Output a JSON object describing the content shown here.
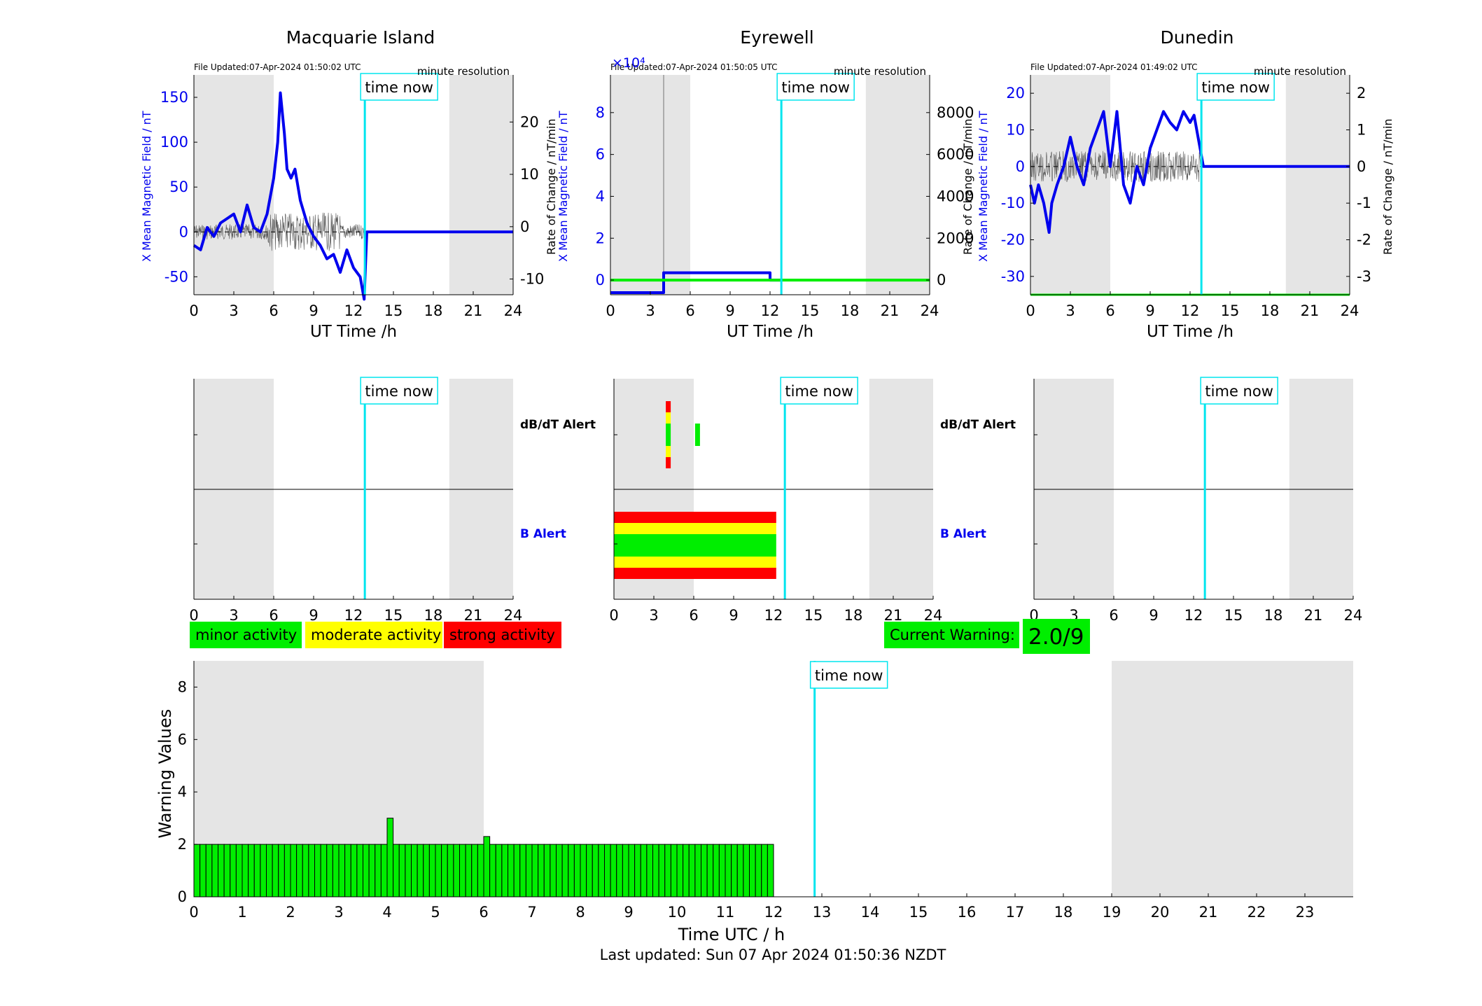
{
  "colors": {
    "night": "#e5e5e5",
    "now_line": "#00e5ee",
    "field": "#0000ee",
    "roc": "#555555",
    "minor": "#00ee00",
    "moderate": "#ffff00",
    "strong": "#ff0000"
  },
  "time_now_label": "time now",
  "xlabel_top": "UT Time /h",
  "now_hour": 12.85,
  "night_bands": [
    [
      0,
      6
    ],
    [
      19.2,
      24
    ]
  ],
  "stations": [
    {
      "title": "Macquarie Island",
      "file_updated": "File Updated:07-Apr-2024 01:50:02 UTC",
      "resolution": "minute resolution",
      "ylabel_left": "X Mean Magnetic Field / nT",
      "ylabel_right": "Rate of Change / nT/min",
      "exponent": "",
      "yticks_left": [
        "-50",
        "0",
        "50",
        "100",
        "150"
      ],
      "yticks_right": [
        "-10",
        "0",
        "10",
        "20"
      ]
    },
    {
      "title": "Eyrewell",
      "file_updated": "File Updated:07-Apr-2024 01:50:05 UTC",
      "resolution": "minute resolution",
      "ylabel_left": "X Mean Magnetic Field / nT",
      "ylabel_right": "Rate of Change / nT/min",
      "exponent": "×10⁴",
      "yticks_left": [
        "0",
        "2",
        "4",
        "6",
        "8"
      ],
      "yticks_right": [
        "0",
        "2000",
        "4000",
        "6000",
        "8000"
      ]
    },
    {
      "title": "Dunedin",
      "file_updated": "File Updated:07-Apr-2024 01:49:02 UTC",
      "resolution": "minute resolution",
      "ylabel_left": "X Mean Magnetic Field / nT",
      "ylabel_right": "Rate of Change / nT/min",
      "exponent": "",
      "yticks_left": [
        "-30",
        "-20",
        "-10",
        "0",
        "10",
        "20"
      ],
      "yticks_right": [
        "-3",
        "-2",
        "-1",
        "0",
        "1",
        "2"
      ]
    }
  ],
  "alerts": {
    "dbdt_label": "dB/dT Alert",
    "b_label": "B Alert",
    "xticks": [
      "0",
      "3",
      "6",
      "9",
      "12",
      "15",
      "18",
      "21",
      "24"
    ]
  },
  "legend": {
    "minor": "minor activity",
    "moderate": "moderate activity",
    "strong": "strong activity"
  },
  "current_warning": {
    "label": "Current Warning:",
    "value": "2.0/9"
  },
  "chart_data": [
    {
      "type": "line",
      "title": "Macquarie Island",
      "xlabel": "UT Time /h",
      "ylabel": "X Mean Magnetic Field / nT",
      "y2label": "Rate of Change / nT/min",
      "xlim": [
        0,
        24
      ],
      "ylim": [
        -70,
        175
      ],
      "y2lim": [
        -13,
        29
      ],
      "series": [
        {
          "x": [
            0,
            0.5,
            1,
            1.5,
            2,
            2.5,
            3,
            3.5,
            4,
            4.5,
            5,
            5.5,
            6,
            6.3,
            6.5,
            6.8,
            7,
            7.3,
            7.6,
            8,
            8.5,
            9,
            9.5,
            10,
            10.5,
            11,
            11.5,
            12,
            12.5,
            12.8,
            13,
            24
          ],
          "y": [
            -15,
            -20,
            5,
            -5,
            10,
            15,
            20,
            0,
            30,
            5,
            0,
            20,
            60,
            100,
            155,
            110,
            70,
            60,
            70,
            35,
            10,
            -5,
            -15,
            -30,
            -25,
            -45,
            -20,
            -40,
            -50,
            -75,
            0,
            0
          ]
        }
      ]
    },
    {
      "type": "line",
      "title": "Eyrewell",
      "xlabel": "UT Time /h",
      "ylabel": "X Mean Magnetic Field / nT",
      "y2label": "Rate of Change / nT/min",
      "y_multiplier": "×10⁴",
      "xlim": [
        0,
        24
      ],
      "ylim": [
        -0.7,
        9.8
      ],
      "y2lim": [
        -700,
        9800
      ],
      "series": [
        {
          "x": [
            0,
            4,
            4,
            12,
            12,
            12.85
          ],
          "y": [
            -0.6,
            -0.6,
            0.35,
            0.35,
            0,
            0
          ]
        },
        {
          "x": [
            0,
            24
          ],
          "y": [
            0,
            0
          ]
        }
      ]
    },
    {
      "type": "line",
      "title": "Dunedin",
      "xlabel": "UT Time /h",
      "ylabel": "X Mean Magnetic Field / nT",
      "y2label": "Rate of Change / nT/min",
      "xlim": [
        0,
        24
      ],
      "ylim": [
        -35,
        25
      ],
      "y2lim": [
        -3.5,
        2.5
      ],
      "series": [
        {
          "x": [
            0,
            0.3,
            0.6,
            1,
            1.4,
            1.6,
            2,
            2.5,
            3,
            3.5,
            4,
            4.5,
            5,
            5.5,
            6,
            6.5,
            7,
            7.5,
            8,
            8.5,
            9,
            9.5,
            10,
            10.5,
            11,
            11.5,
            12,
            12.3,
            12.6,
            13,
            24
          ],
          "y": [
            -5,
            -10,
            -5,
            -10,
            -18,
            -10,
            -5,
            0,
            8,
            0,
            -5,
            5,
            10,
            15,
            0,
            15,
            -5,
            -10,
            0,
            -5,
            5,
            10,
            15,
            12,
            10,
            15,
            12,
            14,
            8,
            0,
            0
          ]
        }
      ]
    },
    {
      "type": "bar",
      "title": "",
      "xlabel": "Time UTC / h",
      "ylabel": "Warning Values",
      "xlim": [
        0,
        24
      ],
      "ylim": [
        0,
        9
      ],
      "x": [
        0,
        0.125,
        0.25,
        0.375,
        0.5,
        0.625,
        0.75,
        0.875,
        1,
        1.125,
        1.25,
        1.375,
        1.5,
        1.625,
        1.75,
        1.875,
        2,
        2.125,
        2.25,
        2.375,
        2.5,
        2.625,
        2.75,
        2.875,
        3,
        3.125,
        3.25,
        3.375,
        3.5,
        3.625,
        3.75,
        3.875,
        4,
        4.125,
        4.25,
        4.375,
        4.5,
        4.625,
        4.75,
        4.875,
        5,
        5.125,
        5.25,
        5.375,
        5.5,
        5.625,
        5.75,
        5.875,
        6,
        6.125,
        6.25,
        6.375,
        6.5,
        6.625,
        6.75,
        6.875,
        7,
        7.125,
        7.25,
        7.375,
        7.5,
        7.625,
        7.75,
        7.875,
        8,
        8.125,
        8.25,
        8.375,
        8.5,
        8.625,
        8.75,
        8.875,
        9,
        9.125,
        9.25,
        9.375,
        9.5,
        9.625,
        9.75,
        9.875,
        10,
        10.125,
        10.25,
        10.375,
        10.5,
        10.625,
        10.75,
        10.875,
        11,
        11.125,
        11.25,
        11.375,
        11.5,
        11.625,
        11.75,
        11.875
      ],
      "values": [
        2,
        2,
        2,
        2,
        2,
        2,
        2,
        2,
        2,
        2,
        2,
        2,
        2,
        2,
        2,
        2,
        2,
        2,
        2,
        2,
        2,
        2,
        2,
        2,
        2,
        2,
        2,
        2,
        2,
        2,
        2,
        2,
        3,
        2,
        2,
        2,
        2,
        2,
        2,
        2,
        2,
        2,
        2,
        2,
        2,
        2,
        2,
        2,
        2.3,
        2,
        2,
        2,
        2,
        2,
        2,
        2,
        2,
        2,
        2,
        2,
        2,
        2,
        2,
        2,
        2,
        2,
        2,
        2,
        2,
        2,
        2,
        2,
        2,
        2,
        2,
        2,
        2,
        2,
        2,
        2,
        2,
        2,
        2,
        2,
        2,
        2,
        2,
        2,
        2,
        2,
        2,
        2,
        2,
        2,
        2,
        2
      ],
      "now_hour": 12.85
    }
  ],
  "warning_chart": {
    "xlabel": "Time UTC / h",
    "ylabel": "Warning Values",
    "xticks": [
      "0",
      "1",
      "2",
      "3",
      "4",
      "5",
      "6",
      "7",
      "8",
      "9",
      "10",
      "11",
      "12",
      "13",
      "14",
      "15",
      "16",
      "17",
      "18",
      "19",
      "20",
      "21",
      "22",
      "23"
    ],
    "yticks": [
      "0",
      "2",
      "4",
      "6",
      "8"
    ]
  },
  "last_updated": "Last updated: Sun 07 Apr 2024 01:50:36 NZDT"
}
